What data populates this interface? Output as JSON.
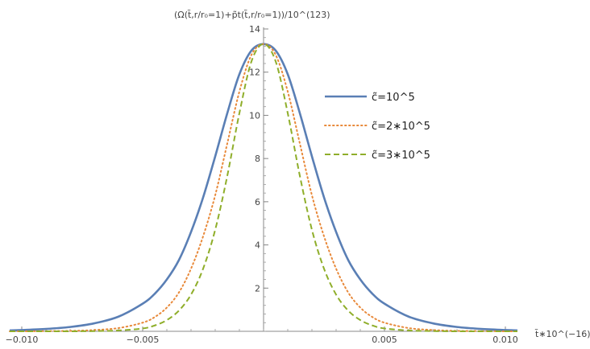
{
  "chart_data": {
    "type": "line",
    "ylabel": "(Ω(t̃,r/r₀=1)+p̃t(t̃,r/r₀=1))/10^(123)",
    "xlabel": "t̃∗10^(−16)",
    "xlim": [
      -0.0105,
      0.0105
    ],
    "ylim": [
      0,
      14
    ],
    "x_ticks": [
      -0.01,
      -0.005,
      0.005,
      0.01
    ],
    "x_tick_labels": [
      "−0.010",
      "−0.005",
      "0.005",
      "0.010"
    ],
    "x_minor_step": 0.001,
    "y_ticks": [
      2,
      4,
      6,
      8,
      10,
      12,
      14
    ],
    "y_tick_labels": [
      "2",
      "4",
      "6",
      "8",
      "10",
      "12",
      "14"
    ],
    "y_minor_step": 0.4,
    "grid": false,
    "legend_position": "top-right",
    "x": [
      -0.0105,
      -0.01,
      -0.009,
      -0.008,
      -0.007,
      -0.006,
      -0.005,
      -0.0045,
      -0.004,
      -0.0035,
      -0.003,
      -0.0025,
      -0.002,
      -0.0015,
      -0.001,
      -0.0005,
      0,
      0.0005,
      0.001,
      0.0015,
      0.002,
      0.0025,
      0.003,
      0.0035,
      0.004,
      0.0045,
      0.005,
      0.006,
      0.007,
      0.008,
      0.009,
      0.01,
      0.0105
    ],
    "series": [
      {
        "name": "c̃=10^5",
        "color": "#5a7fb5",
        "style": "solid",
        "values": [
          0.04,
          0.06,
          0.11,
          0.2,
          0.37,
          0.68,
          1.28,
          1.74,
          2.4,
          3.3,
          4.6,
          6.2,
          8.1,
          10.1,
          11.9,
          13.0,
          13.3,
          13.0,
          11.9,
          10.1,
          8.1,
          6.2,
          4.6,
          3.3,
          2.4,
          1.74,
          1.28,
          0.68,
          0.37,
          0.2,
          0.11,
          0.06,
          0.04
        ]
      },
      {
        "name": "c̃=2∗10^5",
        "color": "#e8893a",
        "style": "dotted",
        "values": [
          0.0,
          0.0,
          0.01,
          0.02,
          0.06,
          0.15,
          0.4,
          0.66,
          1.1,
          1.8,
          2.9,
          4.4,
          6.3,
          8.7,
          11.1,
          12.8,
          13.3,
          12.8,
          11.1,
          8.7,
          6.3,
          4.4,
          2.9,
          1.8,
          1.1,
          0.66,
          0.4,
          0.15,
          0.06,
          0.02,
          0.01,
          0.0,
          0.0
        ]
      },
      {
        "name": "c̃=3∗10^5",
        "color": "#8fae2a",
        "style": "dashed",
        "values": [
          0.0,
          0.0,
          0.0,
          0.0,
          0.01,
          0.04,
          0.13,
          0.27,
          0.52,
          0.96,
          1.7,
          2.9,
          4.7,
          7.2,
          10.1,
          12.5,
          13.3,
          12.5,
          10.1,
          7.2,
          4.7,
          2.9,
          1.7,
          0.96,
          0.52,
          0.27,
          0.13,
          0.04,
          0.01,
          0.0,
          0.0,
          0.0,
          0.0
        ]
      }
    ]
  }
}
